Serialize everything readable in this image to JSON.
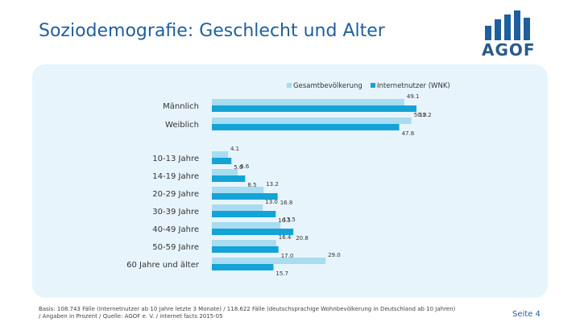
{
  "page": {
    "title": "Soziodemografie: Geschlecht und Alter",
    "logo_text": "AGOF",
    "footnote": "Basis: 108.743 Fälle (Internetnutzer ab 10 Jahre letzte 3 Monate) / 118.622 Fälle (deutschsprachige Wohnbevölkerung in Deutschland ab 10 Jahren) / Angaben in Prozent / Quelle: AGOF e. V. / internet facts 2015-05",
    "page_number": "Seite 4"
  },
  "colors": {
    "title": "#1f5f9e",
    "panel": "#e8f4fb",
    "series_gesamt": "#a8dcf0",
    "series_internet": "#14a3d6"
  },
  "chart_data": {
    "type": "bar",
    "orientation": "horizontal",
    "title": "",
    "legend_position": "top-right",
    "categories": [
      "Männlich",
      "Weiblich",
      "10-13 Jahre",
      "14-19 Jahre",
      "20-29 Jahre",
      "30-39 Jahre",
      "40-49 Jahre",
      "50-59 Jahre",
      "60 Jahre und älter"
    ],
    "series": [
      {
        "name": "Gesamtbevölkerung",
        "values": [
          49.1,
          50.9,
          4.1,
          6.6,
          13.2,
          13.0,
          17.5,
          16.4,
          29.0
        ],
        "labels": [
          "49.1",
          "50.9",
          "4.1",
          "6.6",
          "13.2",
          "13.0",
          "17.5",
          "16.4",
          "29.0"
        ]
      },
      {
        "name": "Internetnutzer (WNK)",
        "values": [
          52.2,
          47.8,
          5.0,
          8.5,
          16.8,
          16.3,
          20.8,
          17.0,
          15.7
        ],
        "labels": [
          "52.2",
          "47.8",
          "5.0",
          "8.5",
          "16.8",
          "16.3",
          "20.8",
          "17.0",
          "15.7"
        ]
      }
    ],
    "xlim": [
      0,
      52.2
    ]
  }
}
